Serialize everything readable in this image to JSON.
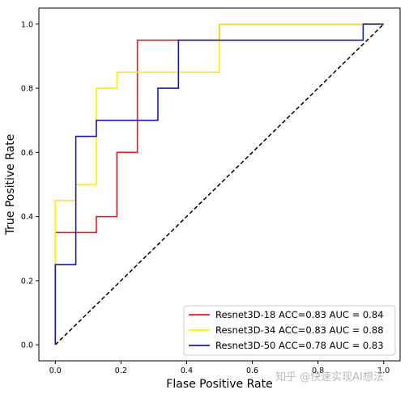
{
  "chart_data": {
    "type": "line",
    "xlabel": "Flase Positive Rate",
    "ylabel": "True Positive Rate",
    "xlim": [
      -0.05,
      1.05
    ],
    "ylim": [
      -0.05,
      1.05
    ],
    "xticks": [
      0.0,
      0.2,
      0.4,
      0.6,
      0.8,
      1.0
    ],
    "yticks": [
      0.0,
      0.2,
      0.4,
      0.6,
      0.8,
      1.0
    ],
    "xtick_labels": [
      "0.0",
      "0.2",
      "0.4",
      "0.6",
      "0.8",
      "1.0"
    ],
    "ytick_labels": [
      "0.0",
      "0.2",
      "0.4",
      "0.6",
      "0.8",
      "1.0"
    ],
    "grid": false,
    "legend_position": "lower-right",
    "series": [
      {
        "name": "Resnet3D-18 ACC=0.83 AUC = 0.84",
        "color": "#e02020",
        "x": [
          0,
          0,
          0,
          0.125,
          0.125,
          0.1875,
          0.1875,
          0.25,
          0.25,
          0.5,
          0.5,
          1.0
        ],
        "y": [
          0,
          0.25,
          0.35,
          0.35,
          0.4,
          0.4,
          0.6,
          0.6,
          0.95,
          0.95,
          1.0,
          1.0
        ]
      },
      {
        "name": "Resnet3D-34 ACC=0.83 AUC = 0.88",
        "color": "#ffee00",
        "x": [
          0,
          0,
          0,
          0.0625,
          0.0625,
          0.125,
          0.125,
          0.1875,
          0.1875,
          0.5,
          0.5,
          1.0
        ],
        "y": [
          0,
          0.25,
          0.45,
          0.45,
          0.5,
          0.5,
          0.8,
          0.8,
          0.85,
          0.85,
          1.0,
          1.0
        ]
      },
      {
        "name": "Resnet3D-50 ACC=0.78 AUC = 0.83",
        "color": "#1a1aa8",
        "x": [
          0,
          0,
          0.0625,
          0.0625,
          0.125,
          0.125,
          0.3125,
          0.3125,
          0.375,
          0.375,
          0.9375,
          0.9375,
          1.0
        ],
        "y": [
          0,
          0.25,
          0.25,
          0.65,
          0.65,
          0.7,
          0.7,
          0.8,
          0.8,
          0.95,
          0.95,
          1.0,
          1.0
        ]
      }
    ],
    "reference_line": {
      "x": [
        0,
        1
      ],
      "y": [
        0,
        1
      ],
      "color": "#000000",
      "style": "dashed"
    }
  },
  "watermark": "知乎 @快速实现AI想法"
}
